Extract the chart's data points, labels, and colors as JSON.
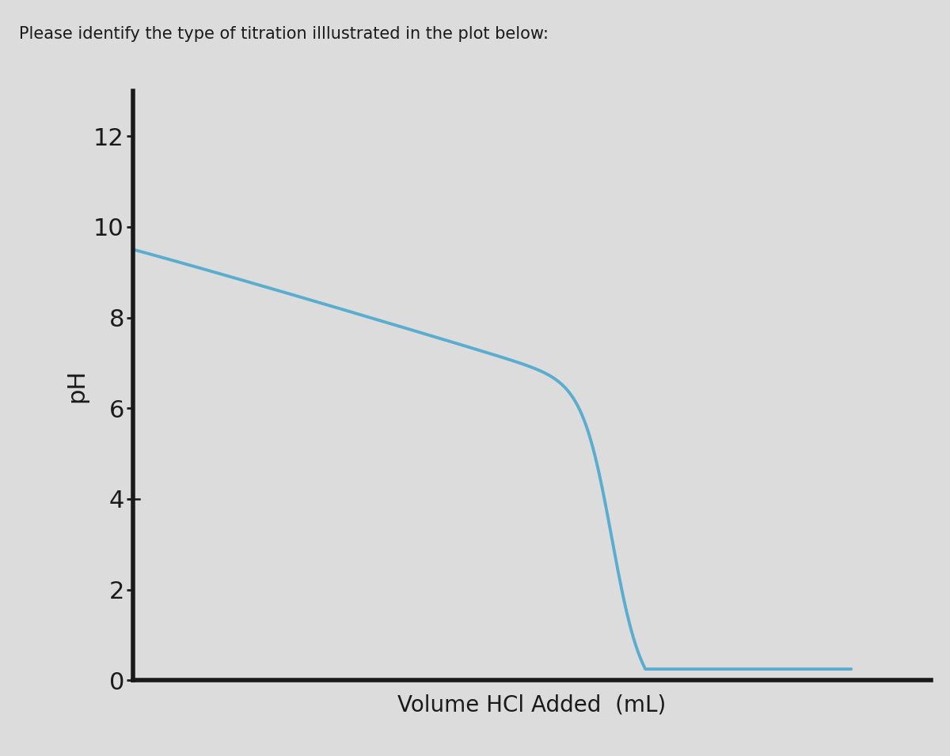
{
  "title": "Please identify the type of titration illlustrated in the plot below:",
  "xlabel": "Volume HCl Added  (mL)",
  "ylabel": "pH",
  "ylim": [
    0,
    13
  ],
  "xlim": [
    0,
    100
  ],
  "yticks": [
    0,
    2,
    4,
    6,
    8,
    10,
    12
  ],
  "line_color": "#5aadce",
  "line_width": 2.8,
  "bg_color": "#dcdcdc",
  "plot_bg_color": "#dcdcdc",
  "title_fontsize": 15,
  "xlabel_fontsize": 20,
  "ylabel_fontsize": 22,
  "tick_fontsize": 22,
  "axis_color": "#1a1a1a",
  "axis_linewidth": 4
}
